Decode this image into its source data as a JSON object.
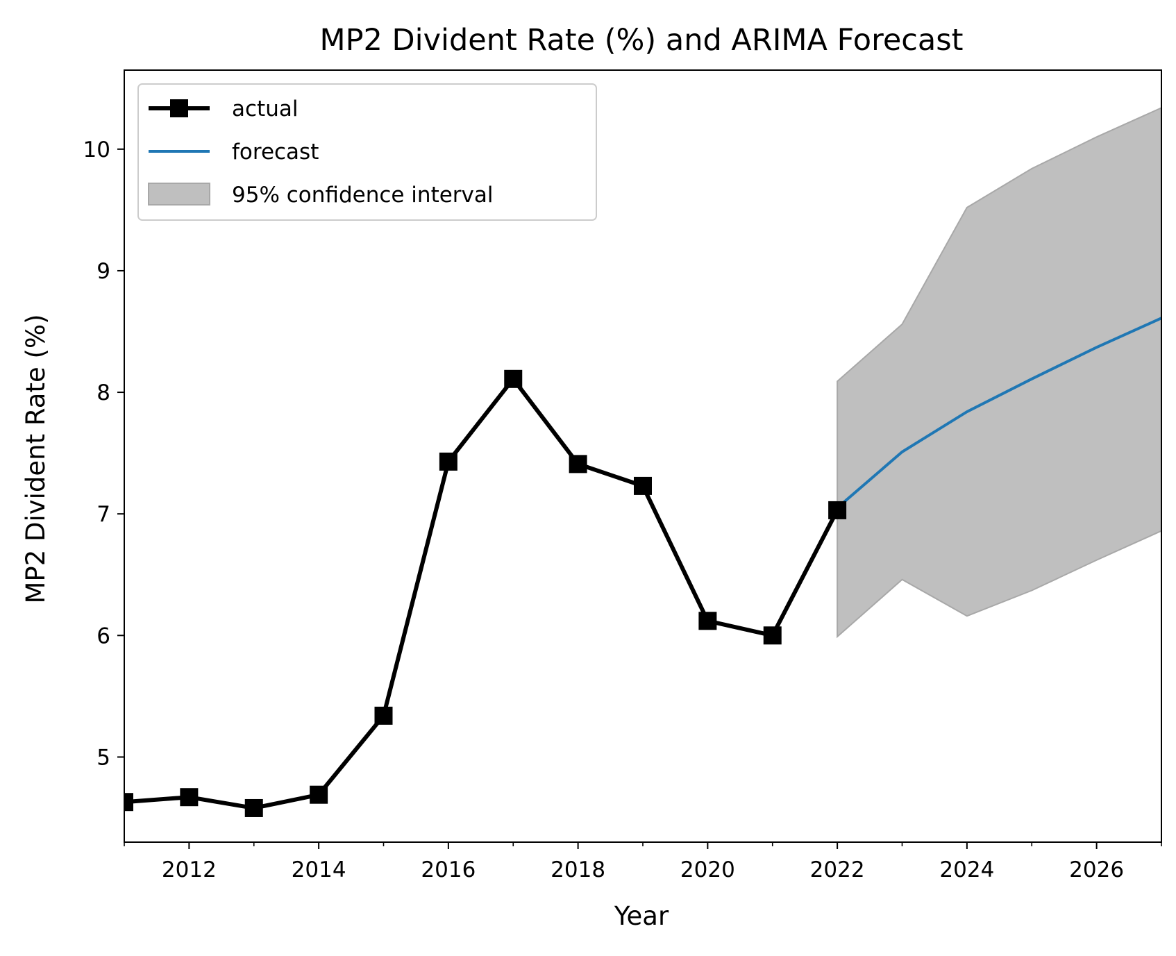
{
  "chart_data": {
    "type": "line",
    "title": "MP2 Divident Rate (%) and ARIMA Forecast",
    "xlabel": "Year",
    "ylabel": "MP2 Divident Rate (%)",
    "xlim": [
      2011,
      2027
    ],
    "ylim": [
      4.3,
      10.65
    ],
    "xticks": [
      2012,
      2014,
      2016,
      2018,
      2020,
      2022,
      2024,
      2026
    ],
    "xtick_labels": [
      "2012",
      "2014",
      "2016",
      "2018",
      "2020",
      "2022",
      "2024",
      "2026"
    ],
    "x_minor_ticks": [
      2011,
      2013,
      2015,
      2017,
      2019,
      2021,
      2023,
      2025,
      2027
    ],
    "yticks": [
      5,
      6,
      7,
      8,
      9,
      10
    ],
    "ytick_labels": [
      "5",
      "6",
      "7",
      "8",
      "9",
      "10"
    ],
    "grid": false,
    "legend_position": "upper-left",
    "series": [
      {
        "name": "actual",
        "type": "line",
        "marker": "square",
        "color": "#000000",
        "x": [
          2011,
          2012,
          2013,
          2014,
          2015,
          2016,
          2017,
          2018,
          2019,
          2020,
          2021,
          2022
        ],
        "y": [
          4.63,
          4.67,
          4.58,
          4.69,
          5.34,
          7.43,
          8.11,
          7.41,
          7.23,
          6.12,
          6.0,
          7.03
        ]
      },
      {
        "name": "forecast",
        "type": "line",
        "color": "#1f77b4",
        "x": [
          2022,
          2023,
          2024,
          2025,
          2026,
          2027
        ],
        "y": [
          7.05,
          7.51,
          7.84,
          8.11,
          8.37,
          8.61
        ]
      },
      {
        "name": "95% confidence interval",
        "type": "band",
        "color": "#bfbfbf",
        "x": [
          2022,
          2023,
          2024,
          2025,
          2026,
          2027
        ],
        "lower": [
          5.99,
          6.46,
          6.16,
          6.37,
          6.62,
          6.86
        ],
        "upper": [
          8.09,
          8.56,
          9.52,
          9.84,
          10.1,
          10.34
        ]
      }
    ]
  }
}
